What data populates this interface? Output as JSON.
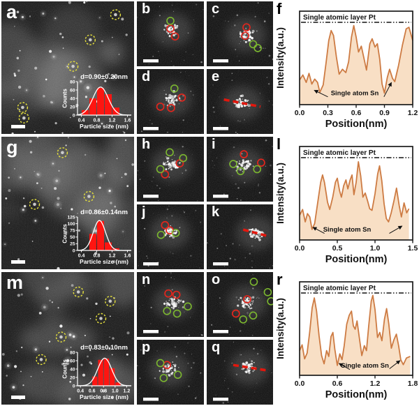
{
  "colors": {
    "red_annotation": "#e3261d",
    "green_annotation": "#7cb82f",
    "yellow_annotation": "#e8e33c",
    "red_dashed_line": "#e3170d",
    "hist_bar": "#fe1511",
    "hist_axis": "#ffffff",
    "profile_line": "#cd7b43",
    "profile_fill": "#f8dfc5",
    "plot_ink": "#111111",
    "scale_bar": "#ffffff"
  },
  "rows": [
    {
      "large": {
        "label": "a",
        "chart": 0,
        "circles": [
          [
            86,
            10
          ],
          [
            67,
            29
          ],
          [
            54,
            49
          ],
          [
            16,
            80
          ],
          [
            17,
            88
          ]
        ]
      },
      "smalls": [
        {
          "label": "b",
          "reds": [
            [
              50,
              42
            ],
            [
              57,
              54
            ]
          ],
          "greens": [
            [
              50,
              30
            ]
          ]
        },
        {
          "label": "c",
          "reds": [
            [
              60,
              40
            ],
            [
              58,
              53
            ]
          ],
          "greens": [
            [
              70,
              66
            ],
            [
              77,
              72
            ]
          ]
        },
        {
          "label": "d",
          "reds": [
            [
              67,
              44
            ],
            [
              35,
              58
            ],
            [
              51,
              60
            ]
          ],
          "greens": [
            [
              56,
              30
            ]
          ]
        },
        {
          "label": "e",
          "line": [
            26,
            47,
            81,
            58
          ]
        }
      ],
      "profile": {
        "label": "f",
        "chart": 3
      }
    },
    {
      "large": {
        "label": "g",
        "chart": 1,
        "circles": [
          [
            46,
            12
          ],
          [
            66,
            45
          ],
          [
            25,
            51
          ]
        ]
      },
      "smalls": [
        {
          "label": "h",
          "reds": [
            [
              64,
              41
            ],
            [
              42,
              58
            ]
          ],
          "greens": [
            [
              49,
              24
            ],
            [
              69,
              33
            ],
            [
              35,
              50
            ]
          ]
        },
        {
          "label": "i",
          "reds": [
            [
              56,
              27
            ],
            [
              82,
              40
            ]
          ],
          "greens": [
            [
              40,
              42
            ],
            [
              51,
              53
            ],
            [
              76,
              50
            ]
          ]
        },
        {
          "label": "j",
          "reds": [
            [
              42,
              32
            ],
            [
              49,
              40
            ]
          ],
          "greens": [
            [
              36,
              47
            ],
            [
              58,
              44
            ]
          ]
        },
        {
          "label": "k",
          "line": [
            55,
            39,
            93,
            49
          ]
        }
      ],
      "profile": {
        "label": "l",
        "chart": 4
      }
    },
    {
      "large": {
        "label": "m",
        "chart": 2,
        "circles": [
          [
            58,
            15
          ],
          [
            82,
            22
          ],
          [
            75,
            35
          ],
          [
            45,
            49
          ],
          [
            30,
            66
          ]
        ]
      },
      "smalls": [
        {
          "label": "n",
          "reds": [
            [
              47,
              33
            ],
            [
              59,
              35
            ]
          ],
          "greens": [
            [
              76,
              53
            ],
            [
              45,
              60
            ],
            [
              60,
              64
            ]
          ]
        },
        {
          "label": "o",
          "reds": [
            [
              61,
              42
            ],
            [
              44,
              64
            ]
          ],
          "greens": [
            [
              71,
              15
            ],
            [
              92,
              31
            ],
            [
              55,
              73
            ],
            [
              70,
              67
            ],
            [
              97,
              45
            ]
          ]
        },
        {
          "label": "p",
          "reds": [
            [
              45,
              39
            ]
          ],
          "greens": [
            [
              35,
              36
            ],
            [
              40,
              59
            ],
            [
              61,
              54
            ]
          ]
        },
        {
          "label": "q",
          "line": [
            40,
            39,
            89,
            47
          ]
        }
      ],
      "profile": {
        "label": "r",
        "chart": 5
      }
    }
  ],
  "chart_data": [
    {
      "id": "histogram-a",
      "type": "bar",
      "panel": "a",
      "title": "d=0.90±0.20nm",
      "xlabel": "Particle size (nm)",
      "ylabel": "Counts",
      "categories": [
        0.5,
        0.7,
        0.9,
        1.1,
        1.3
      ],
      "values": [
        12,
        40,
        65,
        50,
        18
      ],
      "bar_width": 0.2,
      "xlim": [
        0.3,
        1.7
      ],
      "ylim": [
        0,
        80
      ],
      "xticks": [
        0.4,
        0.8,
        1.2,
        1.6
      ],
      "yticks": [
        0,
        20,
        40,
        60,
        80
      ],
      "gauss": {
        "mean": 0.9,
        "sd": 0.2,
        "amp": 67
      }
    },
    {
      "id": "histogram-g",
      "type": "bar",
      "panel": "g",
      "title": "d=0.86±0.14nm",
      "xlabel": "Particle size (nm)",
      "ylabel": "Counts",
      "categories": [
        0.7,
        0.9,
        1.1,
        1.3
      ],
      "values": [
        62,
        110,
        30,
        8
      ],
      "bar_width": 0.2,
      "xlim": [
        0.3,
        1.7
      ],
      "ylim": [
        0,
        125
      ],
      "xticks": [
        0.4,
        0.8,
        1.2,
        1.6
      ],
      "yticks": [
        0,
        25,
        50,
        75,
        100,
        125
      ],
      "gauss": {
        "mean": 0.87,
        "sd": 0.16,
        "amp": 112
      }
    },
    {
      "id": "histogram-m",
      "type": "bar",
      "panel": "m",
      "title": "d=0.83±0.10nm",
      "xlabel": "Particle size (nm)",
      "ylabel": "Counts",
      "categories": [
        0.65,
        0.75,
        0.85,
        0.95,
        1.05
      ],
      "values": [
        22,
        62,
        65,
        42,
        8
      ],
      "bar_width": 0.1,
      "xlim": [
        0.35,
        1.28
      ],
      "ylim": [
        0,
        80
      ],
      "xticks": [
        0.4,
        0.6,
        0.8,
        1.0,
        1.2
      ],
      "yticks": [
        0,
        20,
        40,
        60,
        80
      ],
      "gauss": {
        "mean": 0.82,
        "sd": 0.12,
        "amp": 66
      }
    },
    {
      "id": "profile-f",
      "type": "area",
      "panel": "f",
      "xlabel": "Position(nm)",
      "ylabel": "Intensity(a.u.)",
      "ref_label": "Single atomic layer Pt",
      "ref_level": 1.0,
      "annotation": "Single atom Sn",
      "annotation_pos": [
        0.585,
        0.115
      ],
      "arrows": [
        {
          "tail": [
            0.3,
            0.095
          ],
          "tip": [
            0.155,
            0.175
          ]
        },
        {
          "tail": [
            0.895,
            0.095
          ],
          "tip": [
            0.975,
            0.27
          ]
        }
      ],
      "xlim": [
        0,
        1.2
      ],
      "xticks": [
        0.0,
        0.3,
        0.6,
        0.9,
        1.2
      ],
      "points": [
        [
          0.0,
          0.3
        ],
        [
          0.035,
          0.36
        ],
        [
          0.07,
          0.27
        ],
        [
          0.1,
          0.38
        ],
        [
          0.13,
          0.25
        ],
        [
          0.16,
          0.31
        ],
        [
          0.19,
          0.27
        ],
        [
          0.215,
          0.15
        ],
        [
          0.25,
          0.24
        ],
        [
          0.28,
          0.5
        ],
        [
          0.31,
          0.78
        ],
        [
          0.335,
          0.9
        ],
        [
          0.36,
          0.84
        ],
        [
          0.39,
          0.58
        ],
        [
          0.42,
          0.37
        ],
        [
          0.455,
          0.43
        ],
        [
          0.49,
          0.39
        ],
        [
          0.52,
          0.52
        ],
        [
          0.55,
          0.82
        ],
        [
          0.575,
          0.96
        ],
        [
          0.6,
          0.82
        ],
        [
          0.625,
          0.64
        ],
        [
          0.655,
          0.71
        ],
        [
          0.685,
          0.55
        ],
        [
          0.71,
          0.42
        ],
        [
          0.745,
          0.74
        ],
        [
          0.77,
          0.8
        ],
        [
          0.8,
          0.7
        ],
        [
          0.825,
          0.74
        ],
        [
          0.85,
          0.55
        ],
        [
          0.875,
          0.25
        ],
        [
          0.9,
          0.14
        ],
        [
          0.93,
          0.33
        ],
        [
          0.955,
          0.43
        ],
        [
          0.985,
          0.32
        ],
        [
          1.01,
          0.28
        ],
        [
          1.05,
          0.48
        ],
        [
          1.09,
          0.72
        ],
        [
          1.13,
          0.92
        ],
        [
          1.16,
          0.94
        ],
        [
          1.2,
          0.78
        ]
      ]
    },
    {
      "id": "profile-l",
      "type": "area",
      "panel": "l",
      "xlabel": "Position(nm)",
      "ylabel": "Intensity(a.u.)",
      "ref_label": "Single atomic layer Pt",
      "ref_level": 1.0,
      "annotation": "Single atom Sn",
      "annotation_pos": [
        0.63,
        0.1
      ],
      "arrows": [
        {
          "tail": [
            0.33,
            0.08
          ],
          "tip": [
            0.175,
            0.155
          ]
        },
        {
          "tail": [
            1.19,
            0.08
          ],
          "tip": [
            1.36,
            0.17
          ]
        }
      ],
      "xlim": [
        0,
        1.5
      ],
      "xticks": [
        0.0,
        0.5,
        1.0,
        1.5
      ],
      "points": [
        [
          0.0,
          0.3
        ],
        [
          0.04,
          0.37
        ],
        [
          0.075,
          0.22
        ],
        [
          0.105,
          0.32
        ],
        [
          0.135,
          0.28
        ],
        [
          0.165,
          0.13
        ],
        [
          0.2,
          0.2
        ],
        [
          0.24,
          0.45
        ],
        [
          0.28,
          0.7
        ],
        [
          0.305,
          0.79
        ],
        [
          0.33,
          0.7
        ],
        [
          0.37,
          0.46
        ],
        [
          0.4,
          0.37
        ],
        [
          0.44,
          0.52
        ],
        [
          0.475,
          0.7
        ],
        [
          0.5,
          0.75
        ],
        [
          0.53,
          0.6
        ],
        [
          0.555,
          0.52
        ],
        [
          0.585,
          0.66
        ],
        [
          0.615,
          0.73
        ],
        [
          0.64,
          0.62
        ],
        [
          0.67,
          0.73
        ],
        [
          0.695,
          0.79
        ],
        [
          0.72,
          0.55
        ],
        [
          0.75,
          0.7
        ],
        [
          0.78,
          0.95
        ],
        [
          0.81,
          0.78
        ],
        [
          0.84,
          0.52
        ],
        [
          0.87,
          0.57
        ],
        [
          0.9,
          0.48
        ],
        [
          0.93,
          0.38
        ],
        [
          0.96,
          0.36
        ],
        [
          1.0,
          0.56
        ],
        [
          1.035,
          0.8
        ],
        [
          1.06,
          0.9
        ],
        [
          1.09,
          0.72
        ],
        [
          1.12,
          0.44
        ],
        [
          1.15,
          0.26
        ],
        [
          1.18,
          0.22
        ],
        [
          1.215,
          0.33
        ],
        [
          1.25,
          0.47
        ],
        [
          1.285,
          0.63
        ],
        [
          1.32,
          0.42
        ],
        [
          1.35,
          0.28
        ],
        [
          1.385,
          0.45
        ],
        [
          1.42,
          0.33
        ],
        [
          1.45,
          0.38
        ]
      ]
    },
    {
      "id": "profile-r",
      "type": "area",
      "panel": "r",
      "xlabel": "Position(nm)",
      "ylabel": "Intensity(a.u.)",
      "ref_label": "Single atomic layer Pt",
      "ref_level": 1.0,
      "annotation": "Single atom Sn",
      "annotation_pos": [
        1.04,
        0.095
      ],
      "arrows": [
        {
          "tail": [
            0.8,
            0.07
          ],
          "tip": [
            0.625,
            0.145
          ]
        },
        {
          "tail": [
            1.43,
            0.08
          ],
          "tip": [
            1.6,
            0.18
          ]
        }
      ],
      "xlim": [
        0,
        1.8
      ],
      "xticks": [
        0.0,
        0.6,
        1.2,
        1.8
      ],
      "points": [
        [
          0.0,
          0.3
        ],
        [
          0.04,
          0.37
        ],
        [
          0.08,
          0.2
        ],
        [
          0.12,
          0.27
        ],
        [
          0.16,
          0.52
        ],
        [
          0.2,
          0.82
        ],
        [
          0.235,
          0.94
        ],
        [
          0.27,
          0.78
        ],
        [
          0.31,
          0.48
        ],
        [
          0.35,
          0.24
        ],
        [
          0.39,
          0.14
        ],
        [
          0.43,
          0.3
        ],
        [
          0.465,
          0.23
        ],
        [
          0.5,
          0.47
        ],
        [
          0.53,
          0.52
        ],
        [
          0.56,
          0.32
        ],
        [
          0.6,
          0.12
        ],
        [
          0.64,
          0.26
        ],
        [
          0.675,
          0.19
        ],
        [
          0.71,
          0.36
        ],
        [
          0.75,
          0.62
        ],
        [
          0.79,
          0.73
        ],
        [
          0.825,
          0.78
        ],
        [
          0.855,
          0.6
        ],
        [
          0.885,
          0.56
        ],
        [
          0.915,
          0.66
        ],
        [
          0.95,
          0.46
        ],
        [
          0.99,
          0.24
        ],
        [
          1.03,
          0.36
        ],
        [
          1.065,
          0.3
        ],
        [
          1.1,
          0.6
        ],
        [
          1.14,
          0.9
        ],
        [
          1.165,
          0.97
        ],
        [
          1.2,
          0.8
        ],
        [
          1.24,
          0.46
        ],
        [
          1.275,
          0.52
        ],
        [
          1.31,
          0.42
        ],
        [
          1.35,
          0.68
        ],
        [
          1.385,
          0.81
        ],
        [
          1.42,
          0.62
        ],
        [
          1.46,
          0.33
        ],
        [
          1.5,
          0.43
        ],
        [
          1.54,
          0.5
        ],
        [
          1.575,
          0.36
        ],
        [
          1.61,
          0.19
        ],
        [
          1.65,
          0.13
        ],
        [
          1.7,
          0.21
        ],
        [
          1.76,
          0.23
        ]
      ]
    }
  ]
}
